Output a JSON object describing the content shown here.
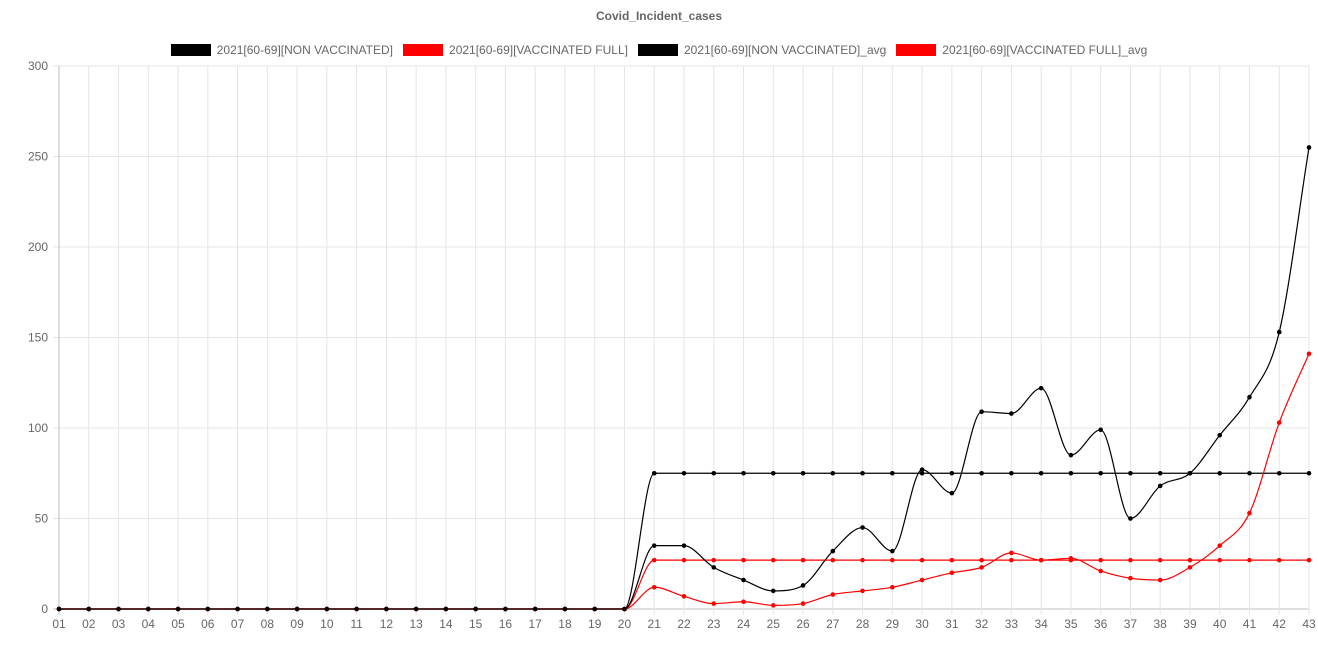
{
  "chart_data": {
    "type": "line",
    "title": "Covid_Incident_cases",
    "xlabel": "",
    "ylabel": "",
    "ylim": [
      0,
      300
    ],
    "yticks": [
      "0",
      "50",
      "100",
      "150",
      "200",
      "250",
      "300"
    ],
    "grid": true,
    "legend_position": "top",
    "categories": [
      "01",
      "02",
      "03",
      "04",
      "05",
      "06",
      "07",
      "08",
      "09",
      "10",
      "11",
      "12",
      "13",
      "14",
      "15",
      "16",
      "17",
      "18",
      "19",
      "20",
      "21",
      "22",
      "23",
      "24",
      "25",
      "26",
      "27",
      "28",
      "29",
      "30",
      "31",
      "32",
      "33",
      "34",
      "35",
      "36",
      "37",
      "38",
      "39",
      "40",
      "41",
      "42",
      "43"
    ],
    "series": [
      {
        "name": "2021[60-69][NON VACCINATED]",
        "color": "#000000",
        "values": [
          0,
          0,
          0,
          0,
          0,
          0,
          0,
          0,
          0,
          0,
          0,
          0,
          0,
          0,
          0,
          0,
          0,
          0,
          0,
          0,
          35,
          35,
          23,
          16,
          10,
          13,
          32,
          45,
          32,
          77,
          64,
          109,
          108,
          122,
          85,
          99,
          50,
          68,
          75,
          96,
          117,
          153,
          255
        ]
      },
      {
        "name": "2021[60-69][VACCINATED FULL]",
        "color": "#ff0000",
        "values": [
          0,
          0,
          0,
          0,
          0,
          0,
          0,
          0,
          0,
          0,
          0,
          0,
          0,
          0,
          0,
          0,
          0,
          0,
          0,
          0,
          12,
          7,
          3,
          4,
          2,
          3,
          8,
          10,
          12,
          16,
          20,
          23,
          31,
          27,
          28,
          21,
          17,
          16,
          23,
          35,
          53,
          103,
          141
        ]
      },
      {
        "name": "2021[60-69][NON VACCINATED]_avg",
        "color": "#000000",
        "values": [
          0,
          0,
          0,
          0,
          0,
          0,
          0,
          0,
          0,
          0,
          0,
          0,
          0,
          0,
          0,
          0,
          0,
          0,
          0,
          0,
          75,
          75,
          75,
          75,
          75,
          75,
          75,
          75,
          75,
          75,
          75,
          75,
          75,
          75,
          75,
          75,
          75,
          75,
          75,
          75,
          75,
          75,
          75
        ]
      },
      {
        "name": "2021[60-69][VACCINATED FULL]_avg",
        "color": "#ff0000",
        "values": [
          0,
          0,
          0,
          0,
          0,
          0,
          0,
          0,
          0,
          0,
          0,
          0,
          0,
          0,
          0,
          0,
          0,
          0,
          0,
          0,
          27,
          27,
          27,
          27,
          27,
          27,
          27,
          27,
          27,
          27,
          27,
          27,
          27,
          27,
          27,
          27,
          27,
          27,
          27,
          27,
          27,
          27,
          27
        ]
      }
    ]
  }
}
